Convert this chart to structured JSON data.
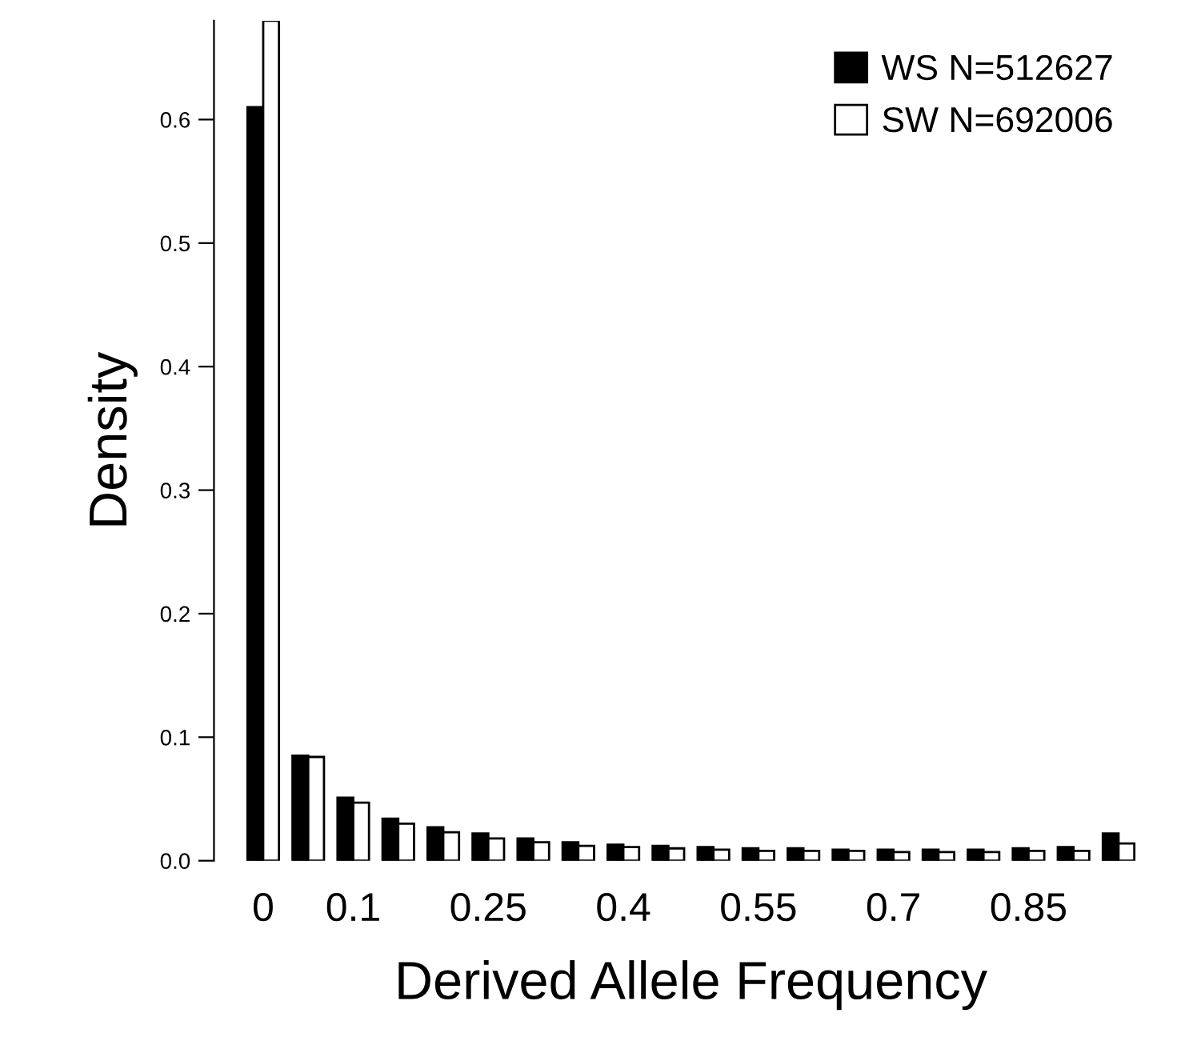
{
  "chart_data": {
    "type": "bar",
    "xlabel": "Derived Allele Frequency",
    "ylabel": "Density",
    "categories": [
      "0",
      null,
      "0.1",
      null,
      null,
      "0.25",
      null,
      null,
      "0.4",
      null,
      null,
      "0.55",
      null,
      null,
      "0.7",
      null,
      null,
      "0.85",
      null,
      null
    ],
    "series": [
      {
        "name": "WS N=512627",
        "color": "#000000",
        "values": [
          0.61,
          0.085,
          0.051,
          0.034,
          0.027,
          0.022,
          0.018,
          0.015,
          0.013,
          0.012,
          0.011,
          0.01,
          0.01,
          0.009,
          0.009,
          0.009,
          0.009,
          0.01,
          0.011,
          0.022
        ]
      },
      {
        "name": "SW N=692006",
        "color": "#ffffff",
        "values": [
          0.68,
          0.084,
          0.047,
          0.03,
          0.023,
          0.018,
          0.015,
          0.012,
          0.011,
          0.01,
          0.009,
          0.008,
          0.008,
          0.008,
          0.007,
          0.007,
          0.007,
          0.008,
          0.008,
          0.014
        ]
      }
    ],
    "ylim": [
      0,
      0.68
    ],
    "yticks": [
      {
        "value": 0,
        "label": "0.0"
      },
      0.1,
      0.2,
      0.3,
      0.4,
      0.5,
      0.6
    ],
    "legend": "top right",
    "grid": false
  }
}
